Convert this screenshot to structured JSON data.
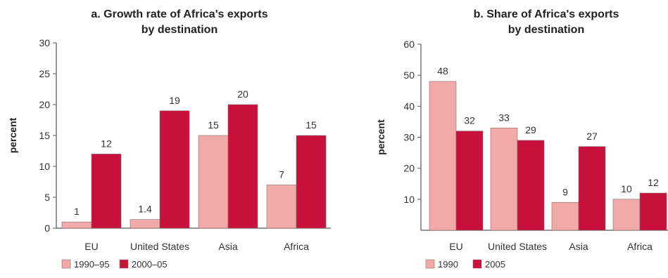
{
  "chart_data": [
    {
      "type": "bar",
      "title_lines": [
        "a. Growth rate of Africa's exports",
        "by destination"
      ],
      "ylabel": "percent",
      "ylim": [
        0,
        30
      ],
      "yticks": [
        0,
        5,
        10,
        15,
        20,
        25,
        30
      ],
      "categories": [
        "EU",
        "United States",
        "Asia",
        "Africa"
      ],
      "series": [
        {
          "name": "1990–95",
          "color": "#f2aaa8",
          "values": [
            1,
            1.4,
            15,
            7
          ],
          "labels": [
            "1",
            "1.4",
            "15",
            "7"
          ]
        },
        {
          "name": "2000–05",
          "color": "#c8103c",
          "values": [
            12,
            19,
            20,
            15
          ],
          "labels": [
            "12",
            "19",
            "20",
            "15"
          ]
        }
      ],
      "grid": false,
      "legend_position": "bottom-left"
    },
    {
      "type": "bar",
      "title_lines": [
        "b. Share of Africa's exports",
        "by destination"
      ],
      "ylabel": "percent",
      "ylim": [
        0,
        60
      ],
      "yticks": [
        10,
        20,
        30,
        40,
        50,
        60
      ],
      "categories": [
        "EU",
        "United States",
        "Asia",
        "Africa"
      ],
      "series": [
        {
          "name": "1990",
          "color": "#f2aaa8",
          "values": [
            48,
            33,
            9,
            10
          ],
          "labels": [
            "48",
            "33",
            "9",
            "10"
          ]
        },
        {
          "name": "2005",
          "color": "#c8103c",
          "values": [
            32,
            29,
            27,
            12
          ],
          "labels": [
            "32",
            "29",
            "27",
            "12"
          ]
        }
      ],
      "grid": false,
      "legend_position": "bottom-left"
    }
  ]
}
